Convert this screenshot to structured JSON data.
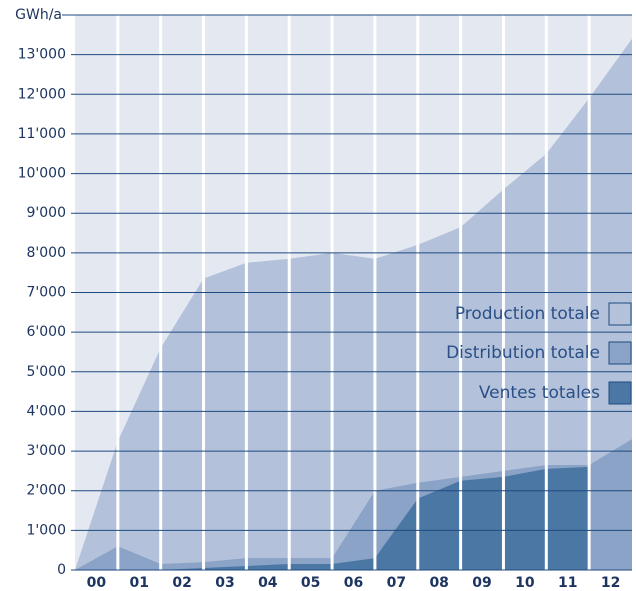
{
  "chart_data": {
    "type": "area",
    "y_label": "GWh/a",
    "categories": [
      "00",
      "01",
      "02",
      "03",
      "04",
      "05",
      "06",
      "07",
      "08",
      "09",
      "10",
      "11",
      "12"
    ],
    "series": [
      {
        "name": "Production totale",
        "color": "#b3c2da",
        "values": [
          3250,
          5600,
          7350,
          7750,
          7850,
          8000,
          7850,
          8200,
          8650,
          9600,
          10500,
          11900,
          13400
        ]
      },
      {
        "name": "Distribution totale",
        "color": "#8aa3c6",
        "values": [
          600,
          150,
          200,
          300,
          300,
          300,
          2000,
          2200,
          2350,
          2500,
          2650,
          2650,
          3300
        ]
      },
      {
        "name": "Ventes totales",
        "color": "#4a77a4",
        "values": [
          0,
          0,
          50,
          100,
          150,
          150,
          300,
          1800,
          2250,
          2350,
          2550,
          2600,
          null
        ]
      }
    ],
    "background": "#e3e8f1",
    "ylim": [
      0,
      14000
    ],
    "yticks": [
      0,
      {
        "value": 1000,
        "label": "1'000"
      },
      {
        "value": 2000,
        "label": "2'000"
      },
      {
        "value": 3000,
        "label": "3'000"
      },
      {
        "value": 4000,
        "label": "4'000"
      },
      {
        "value": 5000,
        "label": "5'000"
      },
      {
        "value": 6000,
        "label": "6'000"
      },
      {
        "value": 7000,
        "label": "7'000"
      },
      {
        "value": 8000,
        "label": "8'000"
      },
      {
        "value": 9000,
        "label": "9'000"
      },
      {
        "value": 10000,
        "label": "10'000"
      },
      {
        "value": 11000,
        "label": "11'000"
      },
      {
        "value": 12000,
        "label": "12'000"
      },
      {
        "value": 13000,
        "label": "13'000"
      }
    ],
    "grid": true
  }
}
